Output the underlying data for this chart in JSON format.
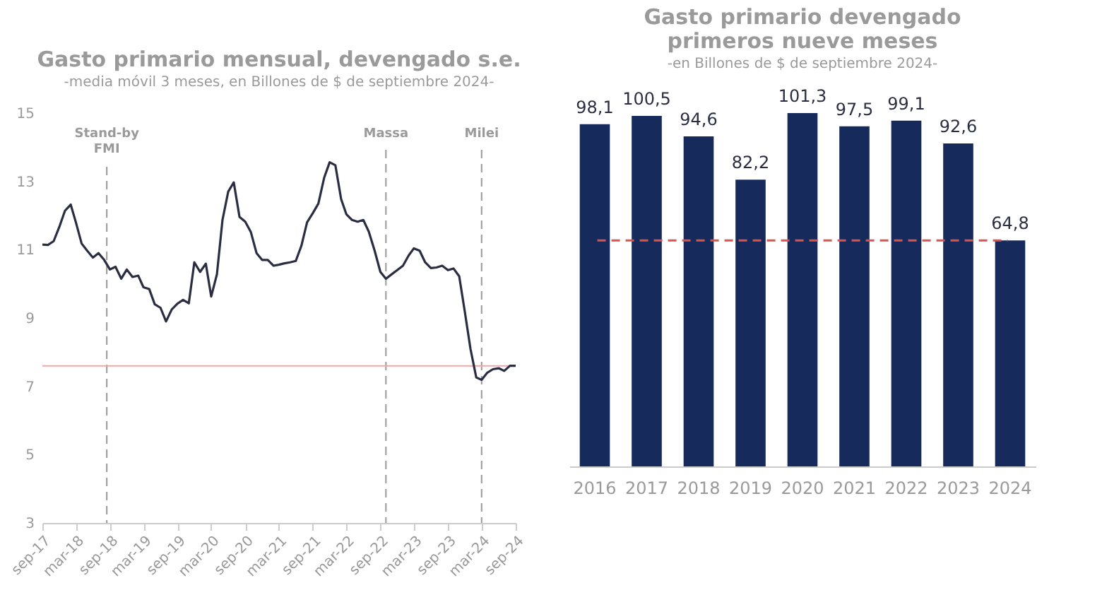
{
  "chart_data": [
    {
      "type": "line",
      "title": "Gasto primario mensual, devengado s.e.",
      "subtitle": "-media móvil 3 meses, en Billones de $ de septiembre 2024-",
      "x": [
        "2017-09",
        "2017-10",
        "2017-11",
        "2017-12",
        "2018-01",
        "2018-02",
        "2018-03",
        "2018-04",
        "2018-05",
        "2018-06",
        "2018-07",
        "2018-08",
        "2018-09",
        "2018-10",
        "2018-11",
        "2018-12",
        "2019-01",
        "2019-02",
        "2019-03",
        "2019-04",
        "2019-05",
        "2019-06",
        "2019-07",
        "2019-08",
        "2019-09",
        "2019-10",
        "2019-11",
        "2019-12",
        "2020-01",
        "2020-02",
        "2020-03",
        "2020-04",
        "2020-05",
        "2020-06",
        "2020-07",
        "2020-08",
        "2020-09",
        "2020-10",
        "2020-11",
        "2020-12",
        "2021-01",
        "2021-02",
        "2021-03",
        "2021-04",
        "2021-05",
        "2021-06",
        "2021-07",
        "2021-08",
        "2021-09",
        "2021-10",
        "2021-11",
        "2021-12",
        "2022-01",
        "2022-02",
        "2022-03",
        "2022-04",
        "2022-05",
        "2022-06",
        "2022-07",
        "2022-08",
        "2022-09",
        "2022-10",
        "2022-11",
        "2022-12",
        "2023-01",
        "2023-02",
        "2023-03",
        "2023-04",
        "2023-05",
        "2023-06",
        "2023-07",
        "2023-08",
        "2023-09",
        "2023-10",
        "2023-11",
        "2023-12",
        "2024-01",
        "2024-02",
        "2024-03",
        "2024-04",
        "2024-05",
        "2024-06",
        "2024-07",
        "2024-08",
        "2024-09"
      ],
      "series": [
        {
          "color": "#2b2d42",
          "values": [
            11.15,
            11.14,
            11.25,
            11.66,
            12.14,
            12.32,
            11.8,
            11.18,
            10.97,
            10.77,
            10.9,
            10.7,
            10.42,
            10.5,
            10.15,
            10.42,
            10.2,
            10.24,
            9.9,
            9.85,
            9.4,
            9.3,
            8.9,
            9.25,
            9.42,
            9.53,
            9.43,
            10.63,
            10.35,
            10.59,
            9.63,
            10.28,
            11.87,
            12.7,
            12.97,
            11.96,
            11.82,
            11.52,
            10.9,
            10.7,
            10.7,
            10.53,
            10.56,
            10.6,
            10.63,
            10.67,
            11.11,
            11.8,
            12.07,
            12.35,
            13.1,
            13.56,
            13.47,
            12.48,
            12.04,
            11.87,
            11.82,
            11.87,
            11.52,
            10.97,
            10.35,
            10.15,
            10.28,
            10.4,
            10.53,
            10.83,
            11.04,
            10.97,
            10.63,
            10.46,
            10.48,
            10.53,
            10.4,
            10.45,
            10.22,
            9.19,
            8.09,
            7.26,
            7.19,
            7.4,
            7.5,
            7.53,
            7.45,
            7.6,
            7.6
          ]
        }
      ],
      "ylim": [
        3,
        15
      ],
      "yticks": [
        3,
        5,
        7,
        9,
        11,
        13,
        15
      ],
      "xlim": [
        "2017-09",
        "2024-09"
      ],
      "xticks": [
        {
          "value": "2017-09",
          "label": "sep-17"
        },
        {
          "value": "2018-03",
          "label": "mar-18"
        },
        {
          "value": "2018-09",
          "label": "sep-18"
        },
        {
          "value": "2019-03",
          "label": "mar-19"
        },
        {
          "value": "2019-09",
          "label": "sep-19"
        },
        {
          "value": "2020-03",
          "label": "mar-20"
        },
        {
          "value": "2020-09",
          "label": "sep-20"
        },
        {
          "value": "2021-03",
          "label": "mar-21"
        },
        {
          "value": "2021-09",
          "label": "sep-21"
        },
        {
          "value": "2022-03",
          "label": "mar-22"
        },
        {
          "value": "2022-09",
          "label": "sep-22"
        },
        {
          "value": "2023-03",
          "label": "mar-23"
        },
        {
          "value": "2023-09",
          "label": "sep-23"
        },
        {
          "value": "2024-03",
          "label": "mar-24"
        },
        {
          "value": "2024-09",
          "label": "sep-24"
        }
      ],
      "grid": false,
      "ref_lines": [
        {
          "axis": "y",
          "value": 7.6,
          "color": "#f4a6a6",
          "line_style": "solid"
        },
        {
          "axis": "x",
          "value": "2018-08-15",
          "label": "Stand-by FMI",
          "color": "#999999",
          "line_style": "dashed"
        },
        {
          "axis": "x",
          "value": "2022-10",
          "label": "Massa",
          "color": "#999999",
          "line_style": "dashed"
        },
        {
          "axis": "x",
          "value": "2024-03",
          "label": "Milei",
          "color": "#999999",
          "line_style": "dashed"
        }
      ]
    },
    {
      "type": "bar",
      "title": "Gasto primario devengado primeros nueve meses",
      "subtitle": "-en Billones de $ de septiembre 2024-",
      "categories": [
        "2016",
        "2017",
        "2018",
        "2019",
        "2020",
        "2021",
        "2022",
        "2023",
        "2024"
      ],
      "values": [
        98.1,
        100.5,
        94.6,
        82.2,
        101.3,
        97.5,
        99.1,
        92.6,
        64.8
      ],
      "value_labels": [
        "98,1",
        "100,5",
        "94,6",
        "82,2",
        "101,3",
        "97,5",
        "99,1",
        "92,6",
        "64,8"
      ],
      "color": "#172a5c",
      "grid": false,
      "tick_labels": "x",
      "ref_lines": [
        {
          "axis": "y",
          "value": 64.8,
          "color": "#d9534f",
          "line_style": "dashed"
        }
      ]
    }
  ]
}
